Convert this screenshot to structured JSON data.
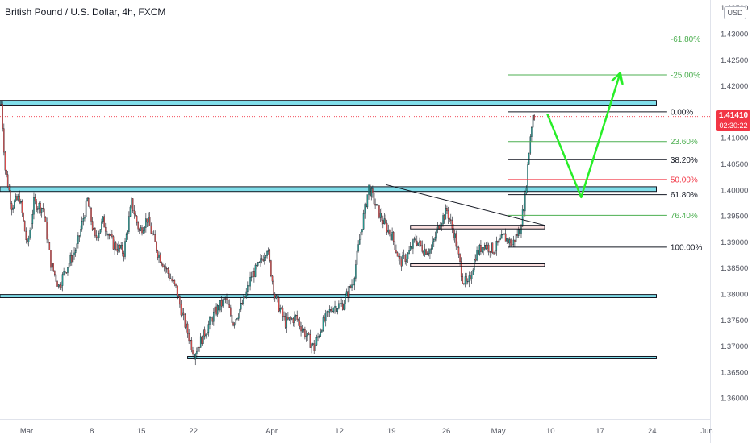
{
  "header": {
    "symbol_title": "British Pound / U.S. Dollar, 4h, FXCM",
    "currency": "USD"
  },
  "last_price": {
    "value": "1.41410",
    "countdown": "02:30:22",
    "color": "#f23645"
  },
  "colors": {
    "up_candle": "#26a69a",
    "down_candle": "#ef5350",
    "zone_fill": "#80deea",
    "zone_stroke": "#131722",
    "forecast_arrow": "#28ee28",
    "trendline": "#131722",
    "fib_green": "#4caf50",
    "fib_red": "#f23645",
    "fib_black": "#131722"
  },
  "chart_data": {
    "type": "candlestick",
    "title": "British Pound / U.S. Dollar, 4h, FXCM",
    "y_axis": {
      "min": 1.356,
      "max": 1.4365,
      "position": "right",
      "ticks": [
        "1.43500",
        "1.43000",
        "1.42500",
        "1.42000",
        "1.41500",
        "1.41000",
        "1.40500",
        "1.40000",
        "1.39500",
        "1.39000",
        "1.38500",
        "1.38000",
        "1.37500",
        "1.37000",
        "1.36500",
        "1.36000"
      ]
    },
    "x_axis": {
      "labels": [
        "Mar",
        "8",
        "15",
        "22",
        "Apr",
        "12",
        "19",
        "26",
        "May",
        "10",
        "17",
        "24",
        "Jun"
      ],
      "label_positions_in_bars": [
        0,
        50,
        88,
        128,
        188,
        240,
        280,
        322,
        362,
        402,
        440,
        480,
        522
      ],
      "bars_total": 540
    },
    "price_path": [
      [
        0,
        1.4165
      ],
      [
        3,
        1.404
      ],
      [
        8,
        1.397
      ],
      [
        14,
        1.3985
      ],
      [
        20,
        1.389
      ],
      [
        25,
        1.3975
      ],
      [
        32,
        1.3965
      ],
      [
        38,
        1.386
      ],
      [
        44,
        1.3815
      ],
      [
        50,
        1.385
      ],
      [
        58,
        1.389
      ],
      [
        66,
        1.398
      ],
      [
        72,
        1.3905
      ],
      [
        78,
        1.394
      ],
      [
        86,
        1.3895
      ],
      [
        94,
        1.388
      ],
      [
        100,
        1.3975
      ],
      [
        106,
        1.392
      ],
      [
        112,
        1.3945
      ],
      [
        120,
        1.388
      ],
      [
        128,
        1.384
      ],
      [
        134,
        1.381
      ],
      [
        140,
        1.375
      ],
      [
        148,
        1.3685
      ],
      [
        156,
        1.3725
      ],
      [
        164,
        1.3765
      ],
      [
        172,
        1.379
      ],
      [
        178,
        1.3745
      ],
      [
        186,
        1.3785
      ],
      [
        192,
        1.3835
      ],
      [
        198,
        1.3855
      ],
      [
        204,
        1.389
      ],
      [
        210,
        1.3795
      ],
      [
        218,
        1.3745
      ],
      [
        226,
        1.3755
      ],
      [
        234,
        1.372
      ],
      [
        240,
        1.3695
      ],
      [
        246,
        1.374
      ],
      [
        254,
        1.3775
      ],
      [
        262,
        1.378
      ],
      [
        270,
        1.3825
      ],
      [
        276,
        1.392
      ],
      [
        282,
        1.4005
      ],
      [
        288,
        1.3965
      ],
      [
        294,
        1.3935
      ],
      [
        300,
        1.391
      ],
      [
        306,
        1.386
      ],
      [
        312,
        1.3875
      ],
      [
        318,
        1.3905
      ],
      [
        324,
        1.3885
      ],
      [
        330,
        1.3885
      ],
      [
        336,
        1.3935
      ],
      [
        342,
        1.396
      ],
      [
        348,
        1.391
      ],
      [
        354,
        1.383
      ],
      [
        358,
        1.3815
      ],
      [
        364,
        1.3875
      ],
      [
        370,
        1.3895
      ],
      [
        378,
        1.3885
      ],
      [
        386,
        1.391
      ],
      [
        392,
        1.3895
      ],
      [
        398,
        1.3925
      ],
      [
        402,
        1.3985
      ],
      [
        404,
        1.4045
      ],
      [
        406,
        1.4105
      ],
      [
        408,
        1.4145
      ],
      [
        409,
        1.4141
      ]
    ],
    "horizontal_zones": [
      {
        "name": "resistance-zone-top",
        "price_low": 1.4163,
        "price_high": 1.4172,
        "x_start_bar": 0,
        "x_end_bar": 500
      },
      {
        "name": "resistance-zone-mid",
        "price_low": 1.3997,
        "price_high": 1.4006,
        "x_start_bar": 0,
        "x_end_bar": 500
      },
      {
        "name": "support-zone-mid",
        "price_low": 1.3793,
        "price_high": 1.3799,
        "x_start_bar": 0,
        "x_end_bar": 500
      },
      {
        "name": "support-zone-low",
        "price_low": 1.3676,
        "price_high": 1.368,
        "x_start_bar": 144,
        "x_end_bar": 500
      }
    ],
    "rectangles": [
      {
        "name": "consolidation-box-top",
        "price_low": 1.3925,
        "price_high": 1.3932,
        "x_start_bar": 315,
        "x_end_bar": 418
      },
      {
        "name": "consolidation-box-bottom",
        "price_low": 1.3853,
        "price_high": 1.3858,
        "x_start_bar": 315,
        "x_end_bar": 418
      }
    ],
    "trendline": {
      "from": [
        296,
        1.401
      ],
      "to": [
        418,
        1.3932
      ]
    },
    "fibonacci": {
      "x_start_bar": 390,
      "x_end_bar": 512,
      "levels": [
        {
          "label": "-61.80%",
          "price": 1.429,
          "color": "#4caf50"
        },
        {
          "label": "-25.00%",
          "price": 1.4221,
          "color": "#4caf50"
        },
        {
          "label": "0.00%",
          "price": 1.415,
          "color": "#131722"
        },
        {
          "label": "23.60%",
          "price": 1.4093,
          "color": "#4caf50"
        },
        {
          "label": "38.20%",
          "price": 1.4058,
          "color": "#131722"
        },
        {
          "label": "50.00%",
          "price": 1.402,
          "color": "#f23645"
        },
        {
          "label": "61.80%",
          "price": 1.3991,
          "color": "#131722"
        },
        {
          "label": "76.40%",
          "price": 1.3951,
          "color": "#4caf50"
        },
        {
          "label": "100.00%",
          "price": 1.389,
          "color": "#131722"
        }
      ]
    },
    "forecast_path": [
      [
        420,
        1.4146
      ],
      [
        446,
        1.3986
      ],
      [
        476,
        1.4225
      ]
    ],
    "last_price_line": 1.4141
  }
}
